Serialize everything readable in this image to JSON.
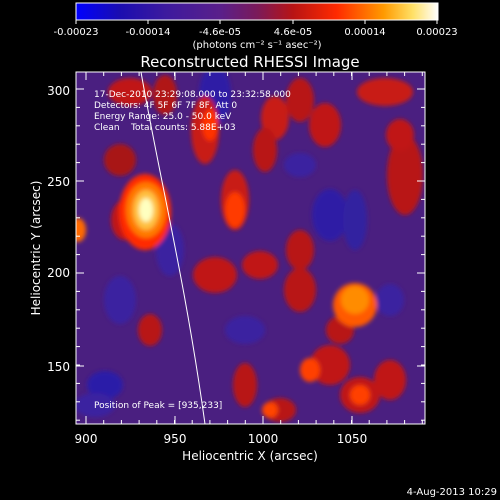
{
  "colorbar": {
    "ticks": [
      "-0.00023",
      "-0.00014",
      "-4.6e-05",
      "4.6e-05",
      "0.00014",
      "0.00023"
    ],
    "unit_label": "(photons cm⁻² s⁻¹ asec⁻²)"
  },
  "title": "Reconstructed RHESSI Image",
  "annotations": {
    "line1": "17-Dec-2010 23:29:08.000 to 23:32:58.000",
    "line2": "Detectors: 4F 5F 6F 7F 8F, Att 0",
    "line3": "Energy Range: 25.0 - 50.0 keV",
    "line4": "Clean    Total counts: 5.88E+03",
    "peak": "Position of Peak = [935,233]"
  },
  "axes": {
    "x": {
      "label": "Heliocentric X (arcsec)",
      "ticks": [
        "900",
        "950",
        "1000",
        "1050"
      ]
    },
    "y": {
      "label": "Heliocentric Y (arcsec)",
      "ticks": [
        "150",
        "200",
        "250",
        "300"
      ]
    }
  },
  "footer": {
    "timestamp": "4-Aug-2013 10:29"
  },
  "colors": {
    "background": "#000000",
    "text": "#ffffff",
    "limb_line": "#ffffff"
  }
}
